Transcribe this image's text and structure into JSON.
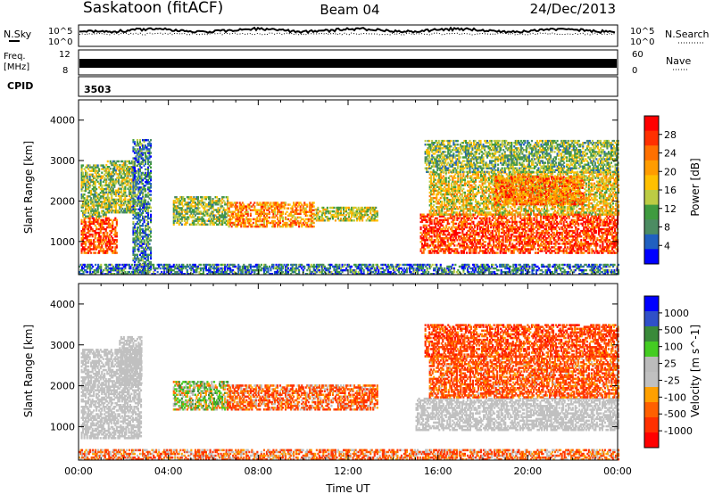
{
  "header": {
    "station": "Saskatoon (fitACF)",
    "beam": "Beam 04",
    "date": "24/Dec/2013"
  },
  "summary_panels": {
    "nsky_label": "N.Sky",
    "nsearch_label": "N.Search",
    "freq_label_line1": "Freq.",
    "freq_label_line2": "[MHz]",
    "nave_label": "Nave",
    "cpid_label": "CPID",
    "cpid_value": "3503",
    "noise_ticks_left": [
      "10^5",
      "10^0"
    ],
    "noise_ticks_right": [
      "10^5",
      "10^0"
    ],
    "freq_ticks": [
      "12",
      "8"
    ],
    "nave_ticks": [
      "60",
      "0"
    ]
  },
  "chart_data": [
    {
      "type": "heatmap",
      "title": "",
      "quantity": "Power",
      "ylabel": "Slant Range [km]",
      "xlabel": "",
      "colorbar_label": "Power [dB]",
      "colorbar_ticks": [
        "28",
        "24",
        "20",
        "16",
        "12",
        "8",
        "4"
      ],
      "colorbar_colors": [
        "#ff0000",
        "#ff3000",
        "#ff7000",
        "#ff9c00",
        "#ffc000",
        "#bccc44",
        "#3f9b3f",
        "#4c8c62",
        "#2060c0",
        "#0000ff"
      ],
      "y_ticks": [
        1000,
        2000,
        3000,
        4000
      ],
      "ylim": [
        180,
        4500
      ],
      "xlim": [
        "00:00",
        "00:00"
      ],
      "regions": [
        {
          "t0": 0.1,
          "t1": 1.7,
          "r0": 700,
          "r1": 1600,
          "v": 26
        },
        {
          "t0": 0.1,
          "t1": 1.2,
          "r0": 1600,
          "r1": 2900,
          "v": 13
        },
        {
          "t0": 1.2,
          "t1": 2.5,
          "r0": 1700,
          "r1": 3000,
          "v": 13
        },
        {
          "t0": 2.4,
          "t1": 3.2,
          "r0": 200,
          "r1": 3500,
          "v": 8
        },
        {
          "t0": 4.2,
          "t1": 6.6,
          "r0": 1400,
          "r1": 2100,
          "v": 13
        },
        {
          "t0": 6.6,
          "t1": 10.5,
          "r0": 1350,
          "r1": 1950,
          "v": 22
        },
        {
          "t0": 10.5,
          "t1": 13.3,
          "r0": 1500,
          "r1": 1850,
          "v": 15
        },
        {
          "t0": 15.2,
          "t1": 24.0,
          "r0": 700,
          "r1": 1650,
          "v": 27
        },
        {
          "t0": 15.6,
          "t1": 24.0,
          "r0": 1650,
          "r1": 2700,
          "v": 17
        },
        {
          "t0": 15.4,
          "t1": 24.0,
          "r0": 2700,
          "r1": 3500,
          "v": 12
        },
        {
          "t0": 18.5,
          "t1": 22.5,
          "r0": 1900,
          "r1": 2600,
          "v": 23
        },
        {
          "t0": 0.0,
          "t1": 24.0,
          "r0": 180,
          "r1": 420,
          "v": 7
        }
      ]
    },
    {
      "type": "heatmap",
      "title": "",
      "quantity": "Velocity",
      "ylabel": "Slant Range [km]",
      "xlabel": "Time UT",
      "colorbar_label": "Velocity [m s^-1]",
      "colorbar_ticks": [
        "1000",
        "500",
        "100",
        "25",
        "-25",
        "-100",
        "-500",
        "-1000"
      ],
      "colorbar_colors": [
        "#0000ff",
        "#3050c8",
        "#3a8a3a",
        "#44cc22",
        "#bbbbbb",
        "#c0c0c0",
        "#ffa000",
        "#ff6000",
        "#ff3000",
        "#ff0000"
      ],
      "y_ticks": [
        1000,
        2000,
        3000,
        4000
      ],
      "ylim": [
        180,
        4500
      ],
      "x_ticks": [
        "00:00",
        "04:00",
        "08:00",
        "12:00",
        "16:00",
        "20:00",
        "00:00"
      ],
      "xlim": [
        "00:00",
        "00:00"
      ],
      "regions": [
        {
          "t0": 0.1,
          "t1": 2.8,
          "r0": 700,
          "r1": 2900,
          "v": 0
        },
        {
          "t0": 1.8,
          "t1": 2.8,
          "r0": 2000,
          "r1": 3200,
          "v": 0
        },
        {
          "t0": 4.2,
          "t1": 6.6,
          "r0": 1400,
          "r1": 2100,
          "v": 80
        },
        {
          "t0": 6.6,
          "t1": 13.3,
          "r0": 1400,
          "r1": 2000,
          "v": -200
        },
        {
          "t0": 15.0,
          "t1": 24.0,
          "r0": 900,
          "r1": 1700,
          "v": 0
        },
        {
          "t0": 15.6,
          "t1": 24.0,
          "r0": 1700,
          "r1": 2700,
          "v": -250
        },
        {
          "t0": 15.4,
          "t1": 24.0,
          "r0": 2700,
          "r1": 3500,
          "v": -300
        },
        {
          "t0": 0.0,
          "t1": 24.0,
          "r0": 180,
          "r1": 420,
          "v": -150
        }
      ]
    }
  ]
}
